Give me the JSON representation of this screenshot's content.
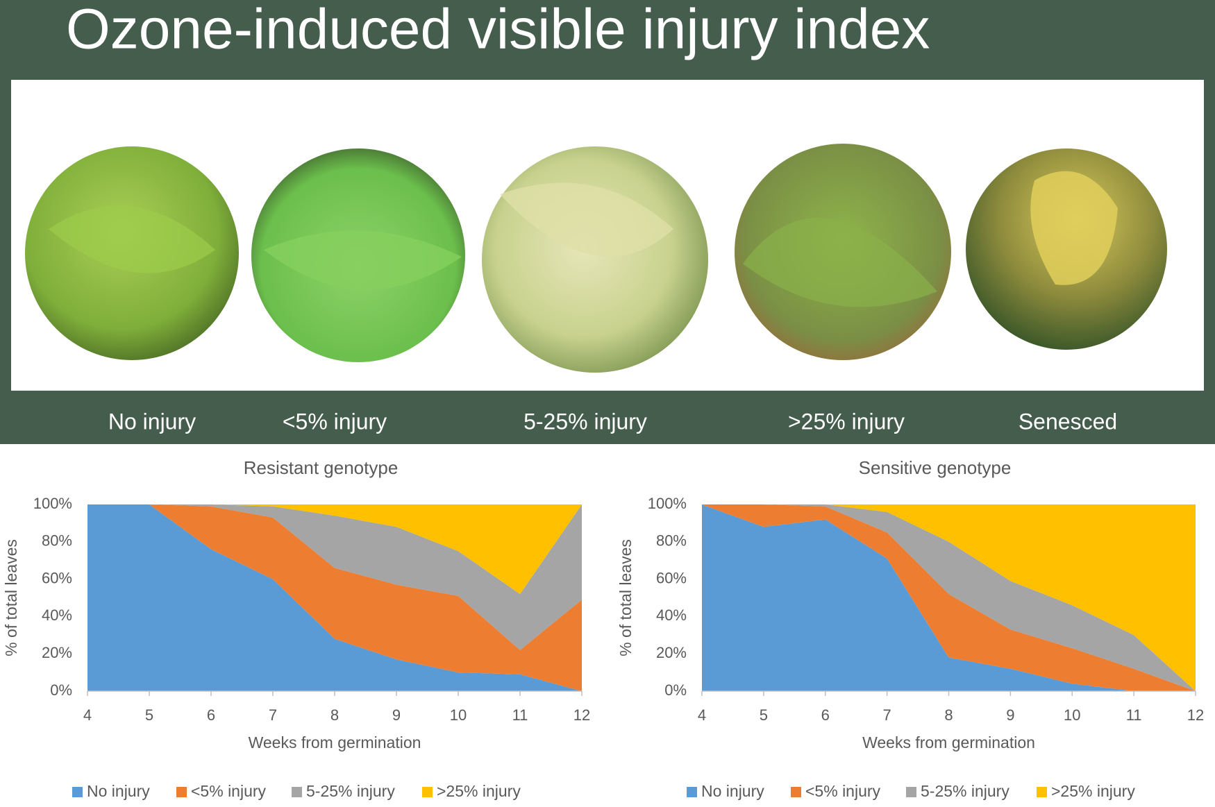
{
  "header": {
    "title": "Ozone-induced visible injury index"
  },
  "photo_labels": [
    "No injury",
    "<5% injury",
    "5-25% injury",
    ">25% injury",
    "Senesced"
  ],
  "chart_data": [
    {
      "type": "stacked_area",
      "title": "Resistant genotype",
      "x_label": "Weeks from germination",
      "y_label": "% of total leaves",
      "x": [
        4,
        5,
        6,
        7,
        8,
        9,
        10,
        11,
        12
      ],
      "xlim": [
        4,
        12
      ],
      "xticks": [
        4,
        5,
        6,
        7,
        8,
        9,
        10,
        11,
        12
      ],
      "ylim": [
        0,
        100
      ],
      "yticks": [
        {
          "value": 0,
          "label": "0%"
        },
        {
          "value": 20,
          "label": "20%"
        },
        {
          "value": 40,
          "label": "40%"
        },
        {
          "value": 60,
          "label": "60%"
        },
        {
          "value": 80,
          "label": "80%"
        },
        {
          "value": 100,
          "label": "100%"
        }
      ],
      "grid": false,
      "legend": "bottom",
      "series": [
        {
          "name": "No injury",
          "color": "#5b9bd5",
          "values": [
            100,
            100,
            76,
            60,
            28,
            17,
            10,
            9,
            0
          ]
        },
        {
          "name": "<5% injury",
          "color": "#ed7d31",
          "values": [
            0,
            0,
            23,
            33,
            38,
            40,
            41,
            13,
            49
          ]
        },
        {
          "name": "5-25% injury",
          "color": "#a5a5a5",
          "values": [
            0,
            0,
            1,
            6,
            28,
            31,
            24,
            30,
            51
          ]
        },
        {
          "name": ">25% injury",
          "color": "#ffc000",
          "values": [
            0,
            0,
            0,
            1,
            6,
            12,
            25,
            48,
            0
          ]
        }
      ]
    },
    {
      "type": "stacked_area",
      "title": "Sensitive genotype",
      "x_label": "Weeks from germination",
      "y_label": "% of total leaves",
      "x": [
        4,
        5,
        6,
        7,
        8,
        9,
        10,
        11,
        12
      ],
      "xlim": [
        4,
        12
      ],
      "xticks": [
        4,
        5,
        6,
        7,
        8,
        9,
        10,
        11,
        12
      ],
      "ylim": [
        0,
        100
      ],
      "yticks": [
        {
          "value": 0,
          "label": "0%"
        },
        {
          "value": 20,
          "label": "20%"
        },
        {
          "value": 40,
          "label": "40%"
        },
        {
          "value": 60,
          "label": "60%"
        },
        {
          "value": 80,
          "label": "80%"
        },
        {
          "value": 100,
          "label": "100%"
        }
      ],
      "grid": false,
      "legend": "bottom",
      "series": [
        {
          "name": "No injury",
          "color": "#5b9bd5",
          "values": [
            100,
            88,
            92,
            71,
            18,
            12,
            4,
            0,
            0
          ]
        },
        {
          "name": "<5% injury",
          "color": "#ed7d31",
          "values": [
            0,
            12,
            7,
            14,
            34,
            21,
            19,
            12,
            0
          ]
        },
        {
          "name": "5-25% injury",
          "color": "#a5a5a5",
          "values": [
            0,
            0,
            1,
            11,
            28,
            26,
            23,
            18,
            0
          ]
        },
        {
          "name": ">25% injury",
          "color": "#ffc000",
          "values": [
            0,
            0,
            0,
            4,
            20,
            41,
            54,
            70,
            100
          ]
        }
      ]
    }
  ]
}
